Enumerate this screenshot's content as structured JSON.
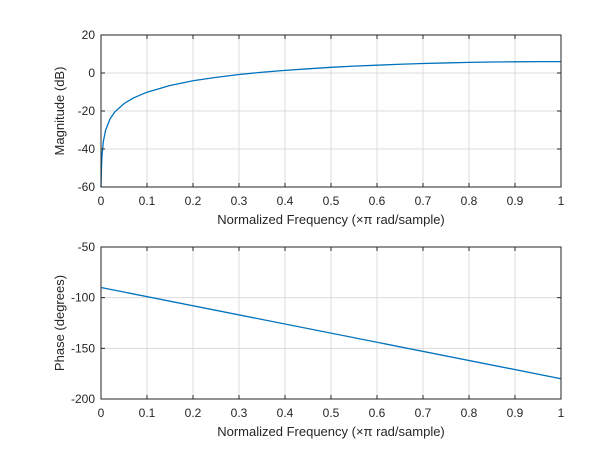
{
  "figure": {
    "background": "#ffffff",
    "axes_color": "#262626",
    "grid_color": "#dcdcdc",
    "line_color": "#0072bd"
  },
  "chart_data": [
    {
      "type": "line",
      "title": "",
      "xlabel": "Normalized Frequency  (×π rad/sample)",
      "ylabel": "Magnitude (dB)",
      "xlim": [
        0,
        1
      ],
      "ylim": [
        -60,
        20
      ],
      "xticks": [
        0,
        0.1,
        0.2,
        0.3,
        0.4,
        0.5,
        0.6,
        0.7,
        0.8,
        0.9,
        1
      ],
      "xtick_labels": [
        "0",
        "0.1",
        "0.2",
        "0.3",
        "0.4",
        "0.5",
        "0.6",
        "0.7",
        "0.8",
        "0.9",
        "1"
      ],
      "yticks": [
        -60,
        -40,
        -20,
        0,
        20
      ],
      "ytick_labels": [
        "-60",
        "-40",
        "-20",
        "0",
        "20"
      ],
      "grid": true,
      "series": [
        {
          "x": [
            0.001,
            0.002,
            0.005,
            0.01,
            0.02,
            0.03,
            0.05,
            0.07,
            0.1,
            0.15,
            0.2,
            0.25,
            0.3,
            0.35,
            0.4,
            0.45,
            0.5,
            0.55,
            0.6,
            0.65,
            0.7,
            0.75,
            0.8,
            0.85,
            0.9,
            0.95,
            1.0
          ],
          "y": [
            -50.1,
            -44.1,
            -36.1,
            -30.1,
            -24.0,
            -20.5,
            -16.1,
            -13.2,
            -10.1,
            -6.6,
            -4.1,
            -2.3,
            -0.8,
            0.4,
            1.4,
            2.2,
            3.0,
            3.6,
            4.1,
            4.6,
            5.0,
            5.3,
            5.6,
            5.8,
            5.9,
            6.0,
            6.0
          ]
        }
      ]
    },
    {
      "type": "line",
      "title": "",
      "xlabel": "Normalized Frequency  (×π rad/sample)",
      "ylabel": "Phase (degrees)",
      "xlim": [
        0,
        1
      ],
      "ylim": [
        -200,
        -50
      ],
      "xticks": [
        0,
        0.1,
        0.2,
        0.3,
        0.4,
        0.5,
        0.6,
        0.7,
        0.8,
        0.9,
        1
      ],
      "xtick_labels": [
        "0",
        "0.1",
        "0.2",
        "0.3",
        "0.4",
        "0.5",
        "0.6",
        "0.7",
        "0.8",
        "0.9",
        "1"
      ],
      "yticks": [
        -200,
        -150,
        -100,
        -50
      ],
      "ytick_labels": [
        "-200",
        "-150",
        "-100",
        "-50"
      ],
      "grid": true,
      "series": [
        {
          "x": [
            0,
            1
          ],
          "y": [
            -90,
            -180
          ]
        }
      ]
    }
  ]
}
